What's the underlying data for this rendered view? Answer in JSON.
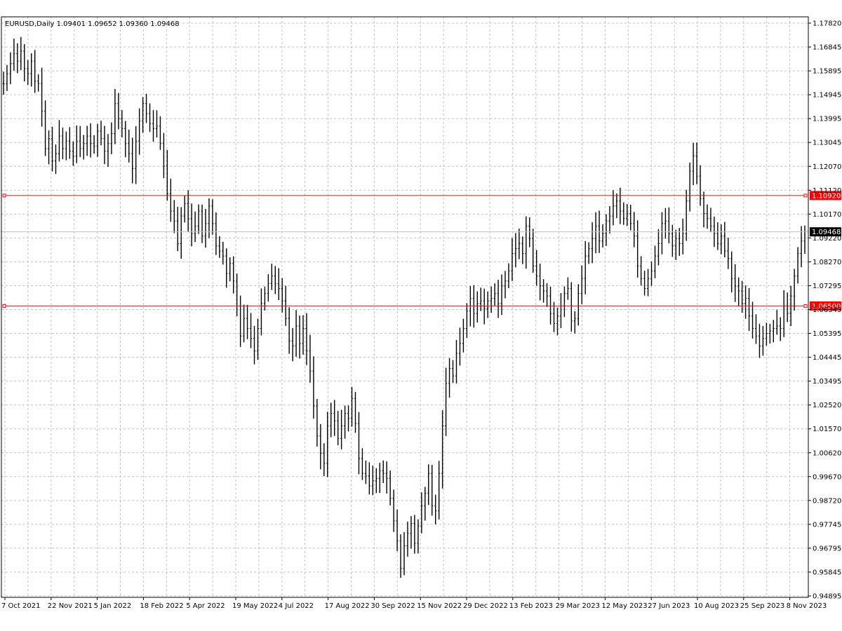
{
  "chart_data": {
    "type": "bar",
    "symbol_header": "EURUSD,Daily  1.09401 1.09652 1.09360 1.09468",
    "x_tick_labels": [
      "7 Oct 2021",
      "22 Nov 2021",
      "5 Jan 2022",
      "18 Feb 2022",
      "5 Apr 2022",
      "19 May 2022",
      "4 Jul 2022",
      "17 Aug 2022",
      "30 Sep 2022",
      "15 Nov 2022",
      "29 Dec 2022",
      "13 Feb 2023",
      "29 Mar 2023",
      "12 May 2023",
      "27 Jun 2023",
      "10 Aug 2023",
      "25 Sep 2023",
      "8 Nov 2023"
    ],
    "y_tick_labels": [
      "1.17820",
      "1.16845",
      "1.15895",
      "1.14945",
      "1.13995",
      "1.13045",
      "1.12070",
      "1.11120",
      "1.10170",
      "1.09220",
      "1.08270",
      "1.07295",
      "1.06345",
      "1.05395",
      "1.04445",
      "1.03495",
      "1.02520",
      "1.01570",
      "1.00620",
      "0.99670",
      "0.98720",
      "0.97745",
      "0.96795",
      "0.95845",
      "0.94895"
    ],
    "ylim": [
      0.94895,
      1.1782
    ],
    "grid": true,
    "price_bars": [
      1.154,
      1.158,
      1.162,
      1.166,
      1.163,
      1.167,
      1.16,
      1.158,
      1.163,
      1.155,
      1.154,
      1.143,
      1.128,
      1.132,
      1.123,
      1.126,
      1.133,
      1.128,
      1.131,
      1.127,
      1.125,
      1.131,
      1.128,
      1.13,
      1.133,
      1.13,
      1.129,
      1.135,
      1.132,
      1.127,
      1.13,
      1.134,
      1.146,
      1.14,
      1.136,
      1.13,
      1.126,
      1.12,
      1.131,
      1.139,
      1.146,
      1.142,
      1.138,
      1.136,
      1.137,
      1.13,
      1.121,
      1.11,
      1.103,
      1.099,
      1.09,
      1.101,
      1.106,
      1.1,
      1.094,
      1.097,
      1.103,
      1.093,
      1.098,
      1.105,
      1.098,
      1.089,
      1.087,
      1.085,
      1.078,
      1.082,
      1.075,
      1.065,
      1.053,
      1.06,
      1.056,
      1.052,
      1.047,
      1.056,
      1.066,
      1.07,
      1.074,
      1.077,
      1.074,
      1.072,
      1.067,
      1.06,
      1.051,
      1.049,
      1.057,
      1.05,
      1.056,
      1.047,
      1.039,
      1.025,
      1.013,
      1.006,
      1.002,
      1.017,
      1.022,
      1.019,
      1.012,
      1.017,
      1.022,
      1.02,
      1.028,
      1.018,
      1.004,
      0.998,
      0.997,
      0.993,
      0.995,
      0.996,
      0.999,
      0.998,
      0.996,
      0.988,
      0.979,
      0.971,
      0.96,
      0.969,
      0.974,
      0.978,
      0.97,
      0.977,
      0.985,
      0.99,
      0.998,
      0.985,
      0.983,
      0.998,
      1.017,
      1.034,
      1.04,
      1.037,
      1.046,
      1.05,
      1.056,
      1.063,
      1.068,
      1.062,
      1.066,
      1.067,
      1.064,
      1.067,
      1.068,
      1.07,
      1.066,
      1.073,
      1.075,
      1.079,
      1.086,
      1.088,
      1.09,
      1.086,
      1.097,
      1.092,
      1.081,
      1.077,
      1.073,
      1.071,
      1.069,
      1.062,
      1.058,
      1.061,
      1.065,
      1.07,
      1.072,
      1.059,
      1.06,
      1.07,
      1.076,
      1.085,
      1.088,
      1.092,
      1.097,
      1.091,
      1.094,
      1.099,
      1.101,
      1.105,
      1.107,
      1.103,
      1.1,
      1.102,
      1.098,
      1.093,
      1.081,
      1.076,
      1.072,
      1.076,
      1.079,
      1.085,
      1.09,
      1.098,
      1.099,
      1.094,
      1.089,
      1.092,
      1.09,
      1.094,
      1.107,
      1.119,
      1.125,
      1.117,
      1.108,
      1.102,
      1.1,
      1.097,
      1.094,
      1.09,
      1.093,
      1.087,
      1.084,
      1.076,
      1.073,
      1.071,
      1.066,
      1.068,
      1.061,
      1.056,
      1.053,
      1.049,
      1.052,
      1.054,
      1.055,
      1.056,
      1.057,
      1.056,
      1.065,
      1.062,
      1.069,
      1.077,
      1.086,
      1.091,
      1.0947
    ]
  },
  "levels": [
    {
      "value": 1.1092,
      "label": "1.10920",
      "color": "#ff0000"
    },
    {
      "value": 1.065,
      "label": "1.06500",
      "color": "#ff0000"
    }
  ],
  "current_price": {
    "value": 1.09468,
    "label": "1.09468",
    "line_color": "#c0c0c0",
    "tag_color": "#000000"
  },
  "colors": {
    "bars": "#000000",
    "grid": "#c0c0c0",
    "frame": "#000000",
    "background": "#ffffff"
  }
}
